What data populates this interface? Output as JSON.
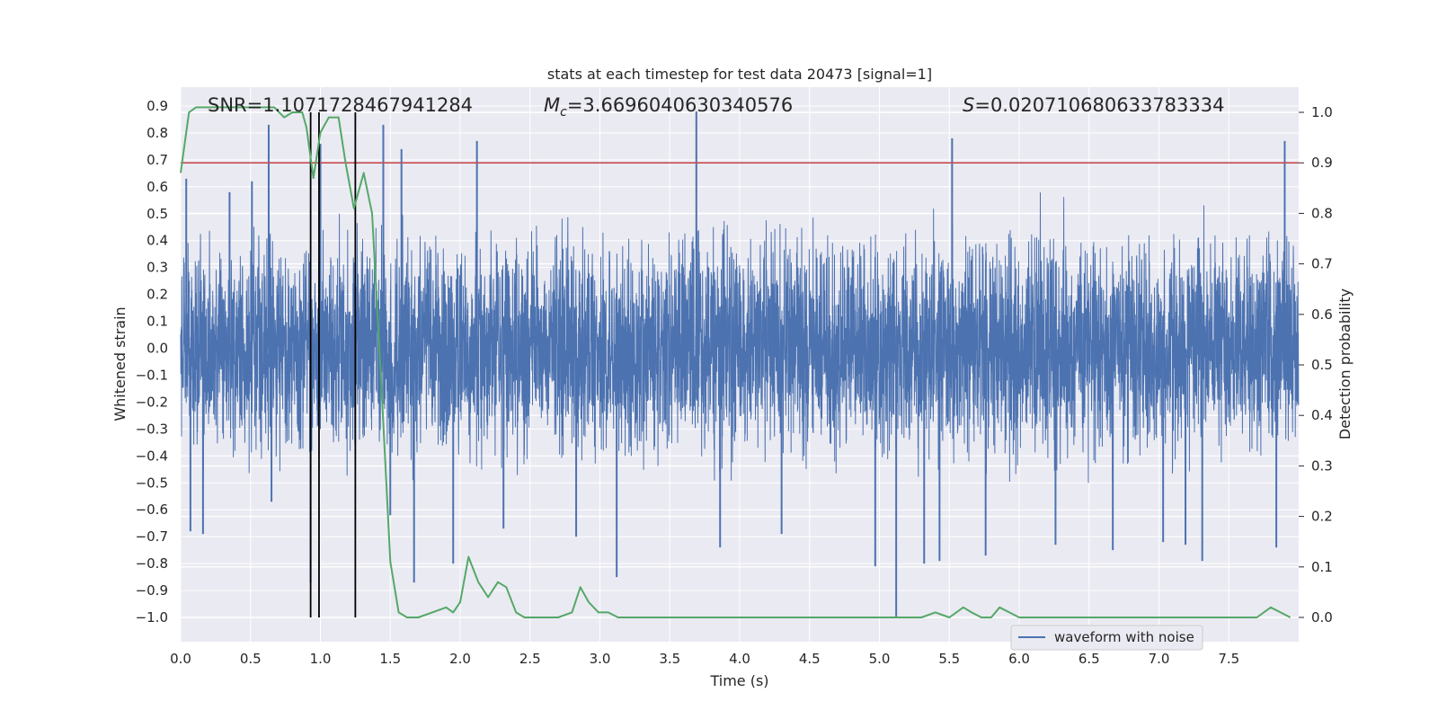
{
  "chart_data": {
    "type": "line",
    "title": "stats at each timestep for test data 20473 [signal=1]",
    "xlabel": "Time (s)",
    "ylabel": "Whitened strain",
    "y2label": "Detection probability",
    "xlim": [
      0,
      8
    ],
    "ylim": [
      -1.09,
      0.95
    ],
    "y2lim": [
      -0.05,
      1.04
    ],
    "x_ticks": [
      "0.0",
      "0.5",
      "1.0",
      "1.5",
      "2.0",
      "2.5",
      "3.0",
      "3.5",
      "4.0",
      "4.5",
      "5.0",
      "5.5",
      "6.0",
      "6.5",
      "7.0",
      "7.5"
    ],
    "y_ticks": [
      "0.9",
      "0.8",
      "0.7",
      "0.6",
      "0.5",
      "0.4",
      "0.3",
      "0.2",
      "0.1",
      "0.0",
      "−0.1",
      "−0.2",
      "−0.3",
      "−0.4",
      "−0.5",
      "−0.6",
      "−0.7",
      "−0.8",
      "−0.9",
      "−1.0"
    ],
    "y2_ticks": [
      "1.0",
      "0.9",
      "0.8",
      "0.7",
      "0.6",
      "0.5",
      "0.4",
      "0.3",
      "0.2",
      "0.1",
      "0.0"
    ],
    "grid": true,
    "legend": {
      "position": "bottom-right",
      "entries": [
        "waveform with noise"
      ]
    },
    "annotations": {
      "snr": "SNR=1.1071728467941284",
      "mc_prefix": "M",
      "mc_sub": "c",
      "mc_value": "=3.6696040630340576",
      "s_prefix": "S",
      "s_value": "=0.020710680633783334"
    },
    "threshold": {
      "value": 0.9,
      "color": "#c44e52"
    },
    "vertical_lines": [
      0.93,
      0.99,
      1.25
    ],
    "series": [
      {
        "name": "waveform with noise",
        "axis": "left",
        "color": "#4c72b0",
        "style": "dense noise, typical amplitude about ±0.5",
        "x": [
          0.04,
          0.07,
          0.16,
          0.35,
          0.51,
          0.63,
          0.65,
          0.93,
          1.0,
          1.45,
          1.5,
          1.58,
          1.67,
          1.95,
          2.12,
          2.31,
          2.83,
          3.12,
          3.69,
          3.86,
          4.3,
          4.97,
          5.12,
          5.32,
          5.43,
          5.52,
          5.76,
          6.26,
          6.67,
          7.03,
          7.19,
          7.31,
          7.84,
          7.9
        ],
        "y": [
          0.63,
          -0.68,
          -0.69,
          0.58,
          0.62,
          0.83,
          -0.57,
          -0.87,
          0.76,
          0.83,
          -0.62,
          0.74,
          -0.87,
          -0.8,
          0.77,
          -0.67,
          -0.7,
          -0.85,
          0.88,
          -0.74,
          -0.69,
          -0.81,
          -1.0,
          -0.8,
          -0.79,
          0.78,
          -0.77,
          -0.73,
          -0.75,
          -0.72,
          -0.73,
          -0.79,
          -0.74,
          0.77
        ]
      },
      {
        "name": "",
        "axis": "right",
        "color": "#55a868",
        "x": [
          0,
          0.06,
          0.11,
          0.2,
          0.3,
          0.4,
          0.5,
          0.6,
          0.67,
          0.74,
          0.8,
          0.87,
          0.9,
          0.95,
          1.0,
          1.06,
          1.13,
          1.18,
          1.24,
          1.31,
          1.37,
          1.44,
          1.5,
          1.56,
          1.62,
          1.7,
          1.8,
          1.9,
          1.95,
          2.0,
          2.06,
          2.13,
          2.2,
          2.27,
          2.33,
          2.4,
          2.46,
          2.53,
          2.6,
          2.7,
          2.8,
          2.86,
          2.92,
          2.99,
          3.06,
          3.13,
          3.2,
          3.5,
          4.0,
          4.2,
          4.5,
          4.8,
          5.0,
          5.2,
          5.3,
          5.4,
          5.5,
          5.6,
          5.66,
          5.73,
          5.8,
          5.86,
          5.93,
          6.0,
          6.1,
          6.3,
          6.5,
          7.0,
          7.5,
          7.7,
          7.8,
          7.87,
          7.94
        ],
        "y": [
          0.88,
          1.0,
          1.01,
          1.01,
          1.01,
          1.01,
          1.01,
          1.01,
          1.01,
          0.99,
          1.0,
          1.0,
          0.97,
          0.87,
          0.96,
          0.99,
          0.99,
          0.9,
          0.81,
          0.88,
          0.8,
          0.44,
          0.11,
          0.01,
          0.0,
          0.0,
          0.01,
          0.02,
          0.01,
          0.03,
          0.12,
          0.07,
          0.04,
          0.07,
          0.06,
          0.01,
          0.0,
          0.0,
          0.0,
          0.0,
          0.01,
          0.06,
          0.03,
          0.01,
          0.01,
          0.0,
          0.0,
          0.0,
          0.0,
          0.0,
          0.0,
          0.0,
          0.0,
          0.0,
          0.0,
          0.01,
          0.0,
          0.02,
          0.01,
          0.0,
          0.0,
          0.02,
          0.01,
          0.0,
          0.0,
          0.0,
          0.0,
          0.0,
          0.0,
          0.0,
          0.02,
          0.01,
          0.0
        ]
      }
    ]
  }
}
